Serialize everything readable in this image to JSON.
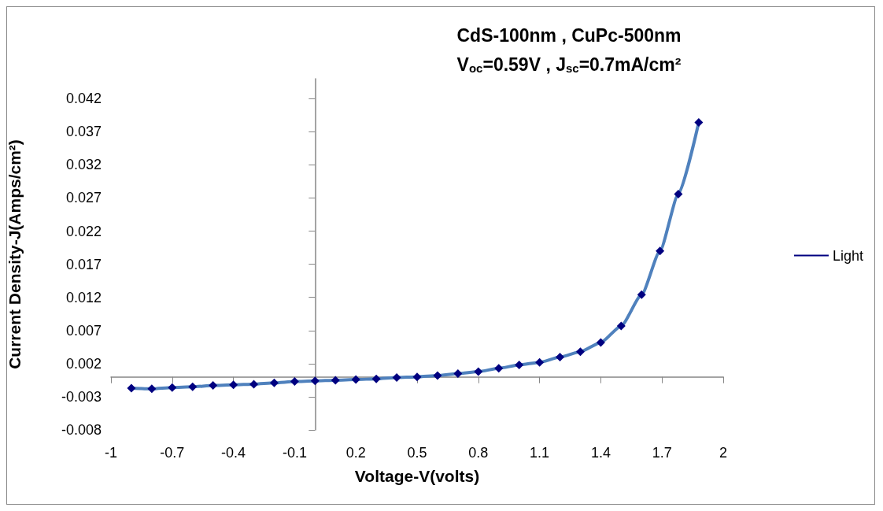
{
  "chart_data": {
    "type": "line",
    "title": "CdS-100nm , CuPc-500nm",
    "subtitle": "V$_{oc}$=0.59V , J$_{sc}$=0.7mA/cm²",
    "xlabel": "Voltage-V(volts)",
    "ylabel": "Current Density-J(Amps/cm²)",
    "x": [
      -0.9,
      -0.8,
      -0.7,
      -0.6,
      -0.5,
      -0.4,
      -0.3,
      -0.2,
      -0.1,
      0,
      0.1,
      0.2,
      0.3,
      0.4,
      0.5,
      0.6,
      0.7,
      0.8,
      0.9,
      1.0,
      1.1,
      1.2,
      1.3,
      1.4,
      1.5,
      1.6,
      1.69,
      1.78,
      1.88
    ],
    "series": [
      {
        "name": "Light",
        "color": "#4f81bd",
        "values": [
          -0.0017,
          -0.0018,
          -0.0016,
          -0.0015,
          -0.0013,
          -0.0012,
          -0.0011,
          -0.0009,
          -0.0007,
          -0.0006,
          -0.0005,
          -0.0004,
          -0.0003,
          -0.0001,
          0,
          0.0002,
          0.0005,
          0.0008,
          0.0013,
          0.0018,
          0.0022,
          0.003,
          0.0038,
          0.0052,
          0.0077,
          0.0124,
          0.019,
          0.0276,
          0.0384
        ]
      }
    ],
    "xlim": [
      -1,
      2
    ],
    "xticks": [
      -1,
      -0.7,
      -0.4,
      -0.1,
      0.2,
      0.5,
      0.8,
      1.1,
      1.4,
      1.7,
      2
    ],
    "ylim": [
      -0.008,
      0.045
    ],
    "yticks": [
      -0.008,
      -0.003,
      0.002,
      0.007,
      0.012,
      0.017,
      0.022,
      0.027,
      0.032,
      0.037,
      0.042
    ],
    "grid": false,
    "legend": "right",
    "marker": "diamond",
    "line_style": "solid"
  }
}
